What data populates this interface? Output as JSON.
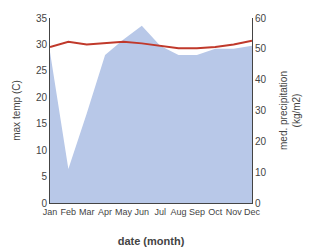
{
  "chart_data": {
    "type": "line",
    "categories": [
      "Jan",
      "Feb",
      "Mar",
      "Apr",
      "May",
      "Jun",
      "Jul",
      "Aug",
      "Sep",
      "Oct",
      "Nov",
      "Dec"
    ],
    "x_label": "date (month)",
    "y_label": "max temp (C)",
    "y2_label": "med. precipitation\n(kg/m2)",
    "series": [
      {
        "type": "area",
        "color": "#b8c8e8",
        "axis": "y2",
        "values": [
          49.0,
          11.0,
          29.0,
          48.0,
          53.0,
          57.5,
          51.0,
          48.0,
          48.0,
          50.0,
          50.0,
          51.0
        ]
      },
      {
        "type": "line",
        "color": "#c0392b",
        "values": [
          29.5,
          30.5,
          30.0,
          30.2,
          30.5,
          30.2,
          29.7,
          29.3,
          29.3,
          29.5,
          30.0,
          30.7
        ]
      }
    ],
    "ylim": [
      0,
      35
    ],
    "yticks": [
      0,
      5,
      10,
      15,
      20,
      25,
      30,
      35
    ],
    "y2lim": [
      0,
      60
    ],
    "y2ticks": [
      0,
      10,
      20,
      30,
      40,
      50,
      60
    ],
    "grid": false
  }
}
